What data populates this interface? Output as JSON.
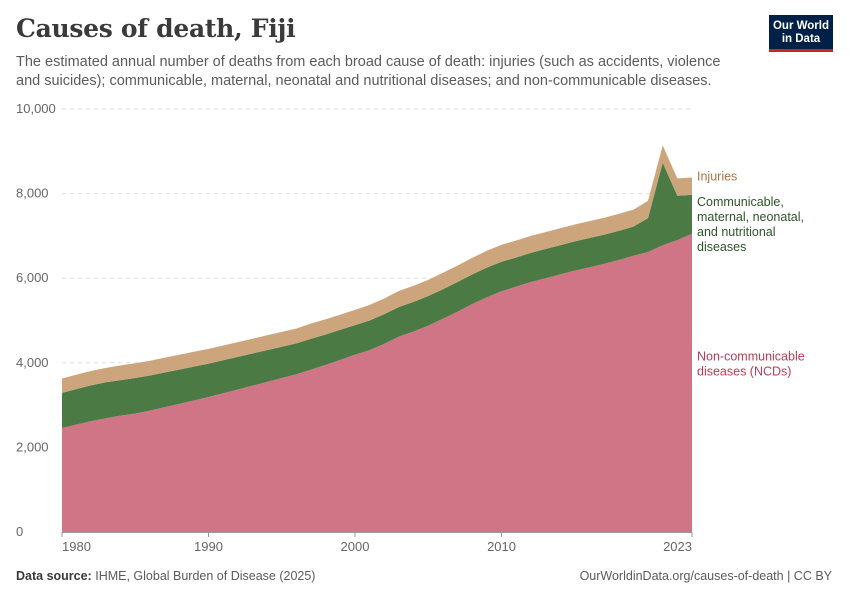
{
  "header": {
    "title": "Causes of death, Fiji",
    "subtitle": "The estimated annual number of deaths from each broad cause of death: injuries (such as accidents, violence and suicides); communicable, maternal, neonatal and nutritional diseases; and non-communicable diseases."
  },
  "logo": {
    "line1": "Our World",
    "line2": "in Data",
    "bg_color": "#002147",
    "accent_color": "#ce261e"
  },
  "footer": {
    "source_label": "Data source:",
    "source_text": "IHME, Global Burden of Disease (2025)",
    "url_text": "OurWorldinData.org/causes-of-death | CC BY"
  },
  "chart_data": {
    "type": "area",
    "stacked": true,
    "title": "Causes of death, Fiji",
    "xlabel": "",
    "ylabel": "",
    "xlim": [
      1980,
      2023
    ],
    "ylim": [
      0,
      10000
    ],
    "yticks": [
      0,
      2000,
      4000,
      6000,
      8000,
      10000
    ],
    "ytick_labels": [
      "0",
      "2,000",
      "4,000",
      "6,000",
      "8,000",
      "10,000"
    ],
    "xticks": [
      1980,
      1990,
      2000,
      2010,
      2023
    ],
    "xtick_labels": [
      "1980",
      "1990",
      "2000",
      "2010",
      "2023"
    ],
    "grid": "horizontal dashed",
    "legend": "right",
    "x": [
      1980,
      1981,
      1982,
      1983,
      1984,
      1985,
      1986,
      1987,
      1988,
      1989,
      1990,
      1991,
      1992,
      1993,
      1994,
      1995,
      1996,
      1997,
      1998,
      1999,
      2000,
      2001,
      2002,
      2003,
      2004,
      2005,
      2006,
      2007,
      2008,
      2009,
      2010,
      2011,
      2012,
      2013,
      2014,
      2015,
      2016,
      2017,
      2018,
      2019,
      2020,
      2021,
      2022,
      2023
    ],
    "series": [
      {
        "name": "Non-communicable diseases (NCDs)",
        "label_lines": [
          "Non-communicable",
          "diseases (NCDs)"
        ],
        "color": "#cf7585",
        "label_color": "#b83e57",
        "values": [
          2460,
          2540,
          2620,
          2690,
          2750,
          2800,
          2870,
          2950,
          3030,
          3110,
          3190,
          3280,
          3370,
          3460,
          3550,
          3640,
          3730,
          3840,
          3950,
          4070,
          4190,
          4300,
          4450,
          4620,
          4740,
          4880,
          5040,
          5210,
          5390,
          5550,
          5690,
          5800,
          5910,
          6000,
          6090,
          6180,
          6260,
          6340,
          6430,
          6530,
          6620,
          6780,
          6900,
          7050
        ]
      },
      {
        "name": "Communicable, maternal, neonatal, and nutritional diseases",
        "label_lines": [
          "Communicable,",
          "maternal, neonatal,",
          "and nutritional",
          "diseases"
        ],
        "color": "#4c7a44",
        "label_color": "#2d5527",
        "values": [
          830,
          840,
          850,
          850,
          840,
          840,
          830,
          820,
          810,
          800,
          790,
          780,
          770,
          760,
          750,
          740,
          730,
          730,
          720,
          710,
          700,
          700,
          700,
          700,
          700,
          700,
          700,
          700,
          700,
          700,
          700,
          690,
          690,
          690,
          690,
          690,
          690,
          690,
          690,
          690,
          800,
          1950,
          1050,
          920
        ]
      },
      {
        "name": "Injuries",
        "label_lines": [
          "Injuries"
        ],
        "color": "#cda57c",
        "label_color": "#a67645",
        "values": [
          340,
          340,
          340,
          340,
          350,
          350,
          350,
          350,
          350,
          350,
          350,
          350,
          350,
          350,
          350,
          350,
          350,
          360,
          360,
          360,
          360,
          370,
          370,
          380,
          380,
          380,
          390,
          390,
          390,
          400,
          400,
          400,
          400,
          400,
          400,
          400,
          400,
          400,
          400,
          400,
          410,
          410,
          410,
          410
        ]
      }
    ]
  }
}
